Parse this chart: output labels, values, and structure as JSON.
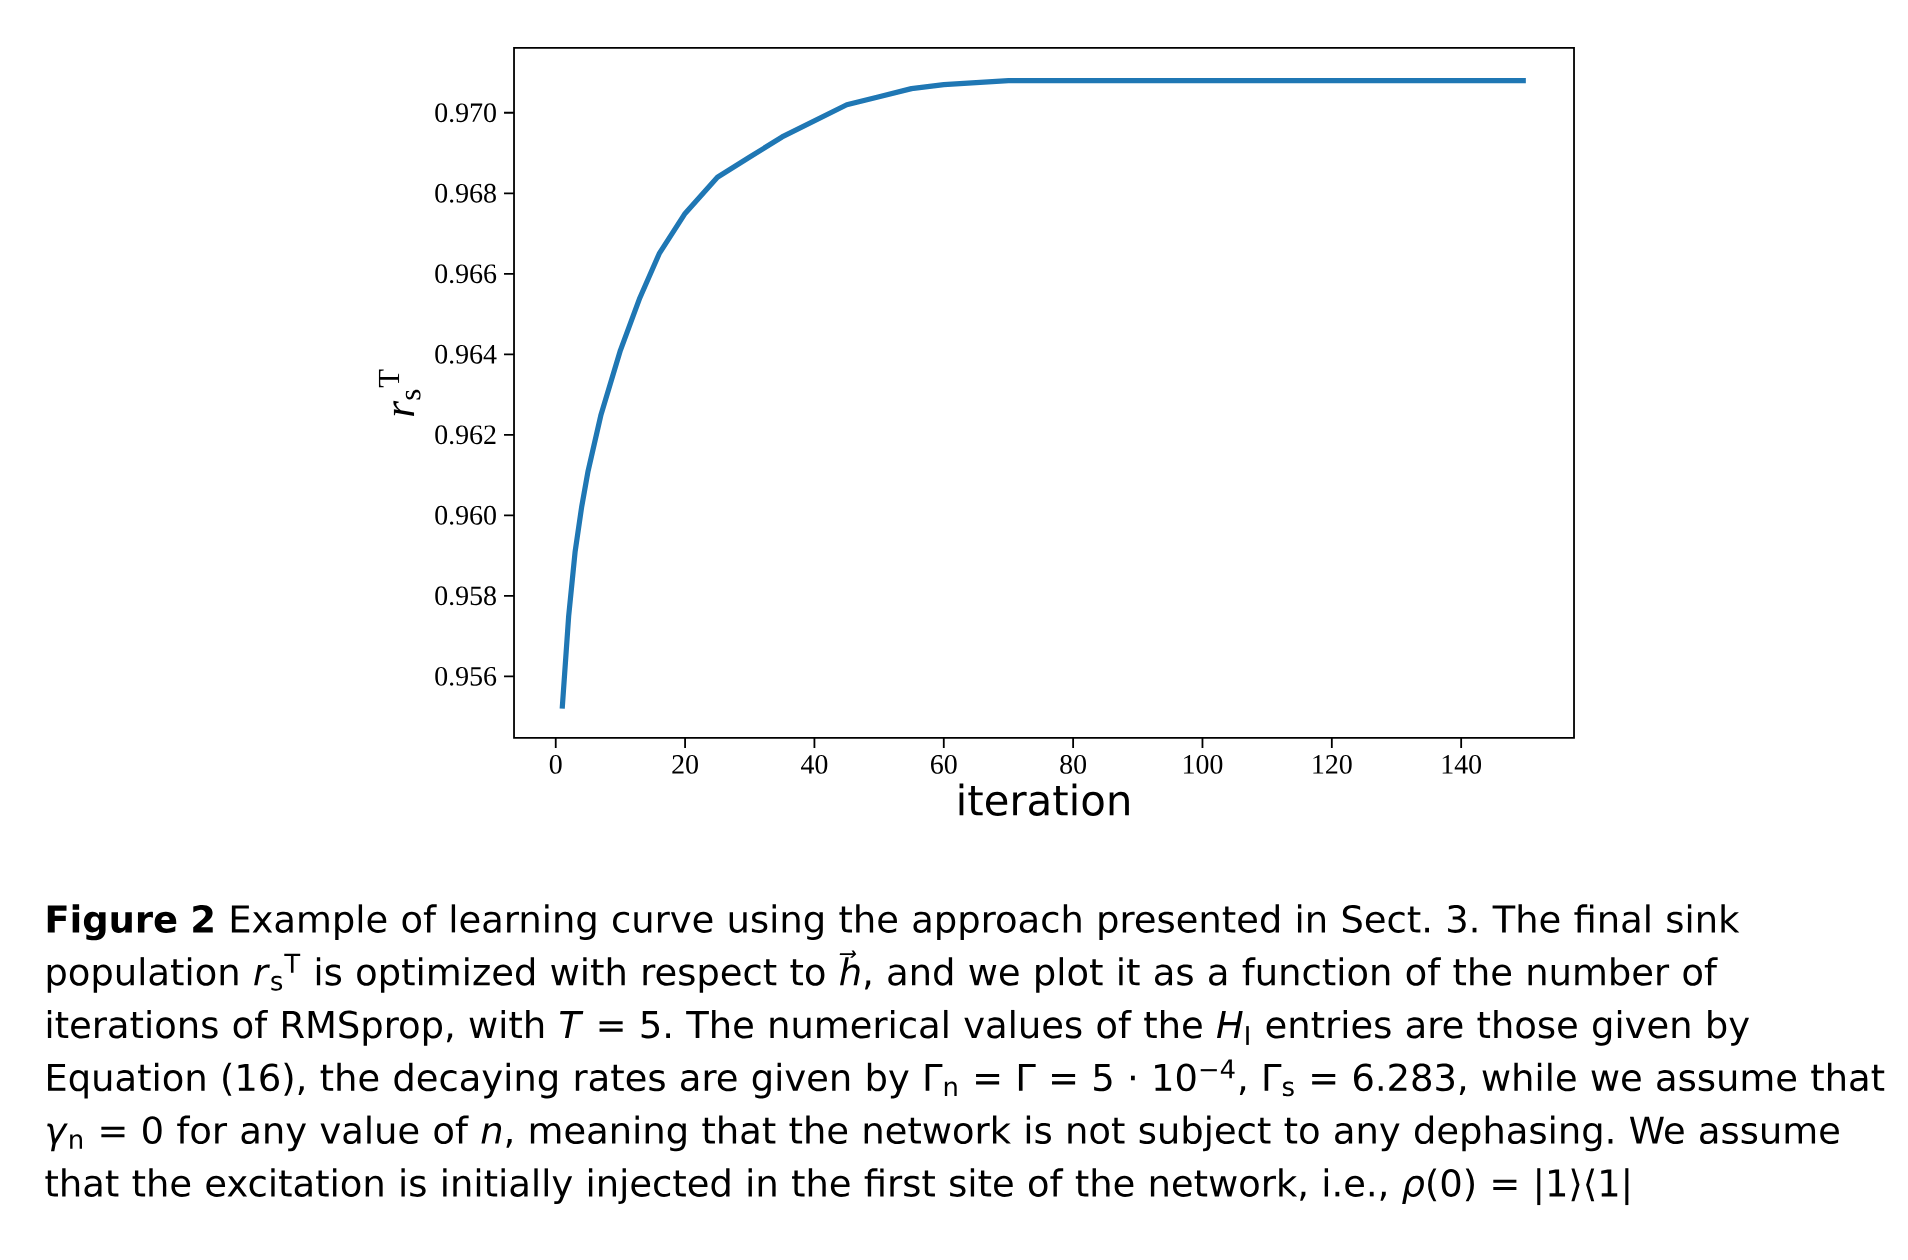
{
  "chart_data": {
    "type": "line",
    "xlabel": "iteration",
    "ylabel": "*r*$_{s}$$^{T}$",
    "x": [
      1,
      2,
      3,
      4,
      5,
      7,
      10,
      13,
      16,
      20,
      25,
      30,
      35,
      40,
      45,
      50,
      55,
      60,
      70,
      80,
      90,
      110,
      120,
      150
    ],
    "series": [
      {
        "color": "#1f77b4",
        "values": [
          0.9552,
          0.9575,
          0.9591,
          0.9602,
          0.9611,
          0.9625,
          0.9641,
          0.9654,
          0.9665,
          0.9675,
          0.9684,
          0.9689,
          0.9694,
          0.9698,
          0.9702,
          0.9704,
          0.9706,
          0.9707,
          0.9708,
          0.9708,
          0.9708,
          0.9708,
          0.9708,
          0.9708
        ]
      }
    ],
    "xlim": [
      -6.45,
      157.45
    ],
    "ylim": [
      0.95447,
      0.97161
    ],
    "xticks": [
      0,
      20,
      40,
      60,
      80,
      100,
      120,
      140
    ],
    "yticks": [
      0.956,
      0.958,
      {
        "value": 0.96,
        "label": "0.960"
      },
      0.962,
      0.964,
      0.966,
      0.968,
      {
        "value": 0.97,
        "label": "0.970"
      }
    ],
    "marker": "none",
    "annotations": [
      "**Figure 2**  Example of learning curve using the approach presented in Sect. 3. The final sink population *r*$_{s}$$^{T}$ is optimized with respect to *h⃗*, and we plot it as a function of the number of iterations of RMSprop, with *T* = 5. The numerical values of the *H*$_{I}$ entries are those given by Equation (16), the decaying rates are given by Γ$_{n}$ = Γ = 5 · 10$^{−4}$, Γ$_{s}$ = 6.283, while we assume that *γ*$_{n}$ = 0 for any value of *n*, meaning that the network is not subject to any dephasing. We assume that the excitation is initially injected in the first site of the network, i.e., *ρ*(0) = |1⟩⟨1|"
    ]
  }
}
